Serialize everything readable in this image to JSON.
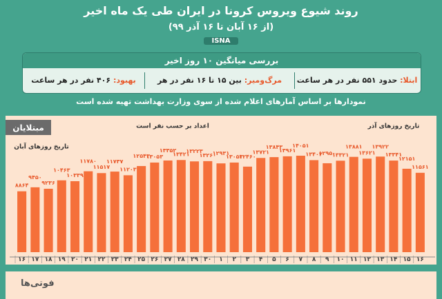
{
  "chart_data": {
    "type": "bar",
    "title": "روند شیوع ویروس کرونا در ایران طی یک ماه اخیر",
    "subtitle": "(از ۱۶ آبان تا ۱۶ آذر ۹۹)",
    "source": "ISNA",
    "summary_title": "بررسی میانگین ۱۰ روز اخیر",
    "summary": [
      {
        "label": "ابتلا:",
        "text": "حدود ۵۵۱ نفر در هر ساعت"
      },
      {
        "label": "مرگ‌ومیر:",
        "text": "بین ۱۵ تا ۱۶ نفر در هر ساعت"
      },
      {
        "label": "بهبود:",
        "text": "۴۰۶ نفر در هر ساعت"
      }
    ],
    "note": "نمودارها بر اساس آمارهای اعلام شده از سوی وزارت بهداشت تهیه شده است",
    "section_title": "مبتلایان",
    "unit_note": "اعداد بر حسب نفر است",
    "aban_label": "تاریخ روزهای آبان",
    "azar_label": "تاریخ روزهای آذر",
    "next_section_title": "فوتی‌ها",
    "color": "#f5703a",
    "categories": [
      "۱۶",
      "۱۷",
      "۱۸",
      "۱۹",
      "۲۰",
      "۲۱",
      "۲۲",
      "۲۳",
      "۲۴",
      "۲۵",
      "۲۶",
      "۲۷",
      "۲۸",
      "۲۹",
      "۳۰",
      "۱",
      "۲",
      "۳",
      "۴",
      "۵",
      "۶",
      "۷",
      "۸",
      "۹",
      "۱۰",
      "۱۱",
      "۱۲",
      "۱۳",
      "۱۴",
      "۱۵",
      "۱۶"
    ],
    "values": [
      8864,
      9450,
      9236,
      10463,
      10339,
      11780,
      11517,
      11737,
      11203,
      12543,
      13053,
      13352,
      13421,
      13223,
      13260,
      12931,
      13053,
      12460,
      13721,
      13843,
      13961,
      14051,
      13402,
      12950,
      13321,
      13881,
      13621,
      13922,
      13341,
      12151,
      11561
    ],
    "value_labels": [
      "۸۸۶۴",
      "۹۴۵۰",
      "۹۲۳۶",
      "۱۰۴۶۳",
      "۱۰۳۳۹",
      "۱۱۷۸۰",
      "۱۱۵۱۷",
      "۱۱۷۳۷",
      "۱۱۲۰۳",
      "۱۲۵۴۳",
      "۱۳۰۵۳",
      "۱۳۳۵۲",
      "۱۳۴۲۱",
      "۱۳۲۲۳",
      "۱۳۲۶۰",
      "۱۲۹۳۱",
      "۱۳۰۵۳",
      "۱۲۴۶۰",
      "۱۳۷۲۱",
      "۱۳۸۴۳",
      "۱۳۹۶۱",
      "۱۴۰۵۱",
      "۱۳۴۰۲",
      "۱۲۹۵۰",
      "۱۳۳۲۱",
      "۱۳۸۸۱",
      "۱۳۶۲۱",
      "۱۳۹۲۲",
      "۱۳۳۴۱",
      "۱۲۱۵۱",
      "۱۱۵۶۱"
    ]
  }
}
